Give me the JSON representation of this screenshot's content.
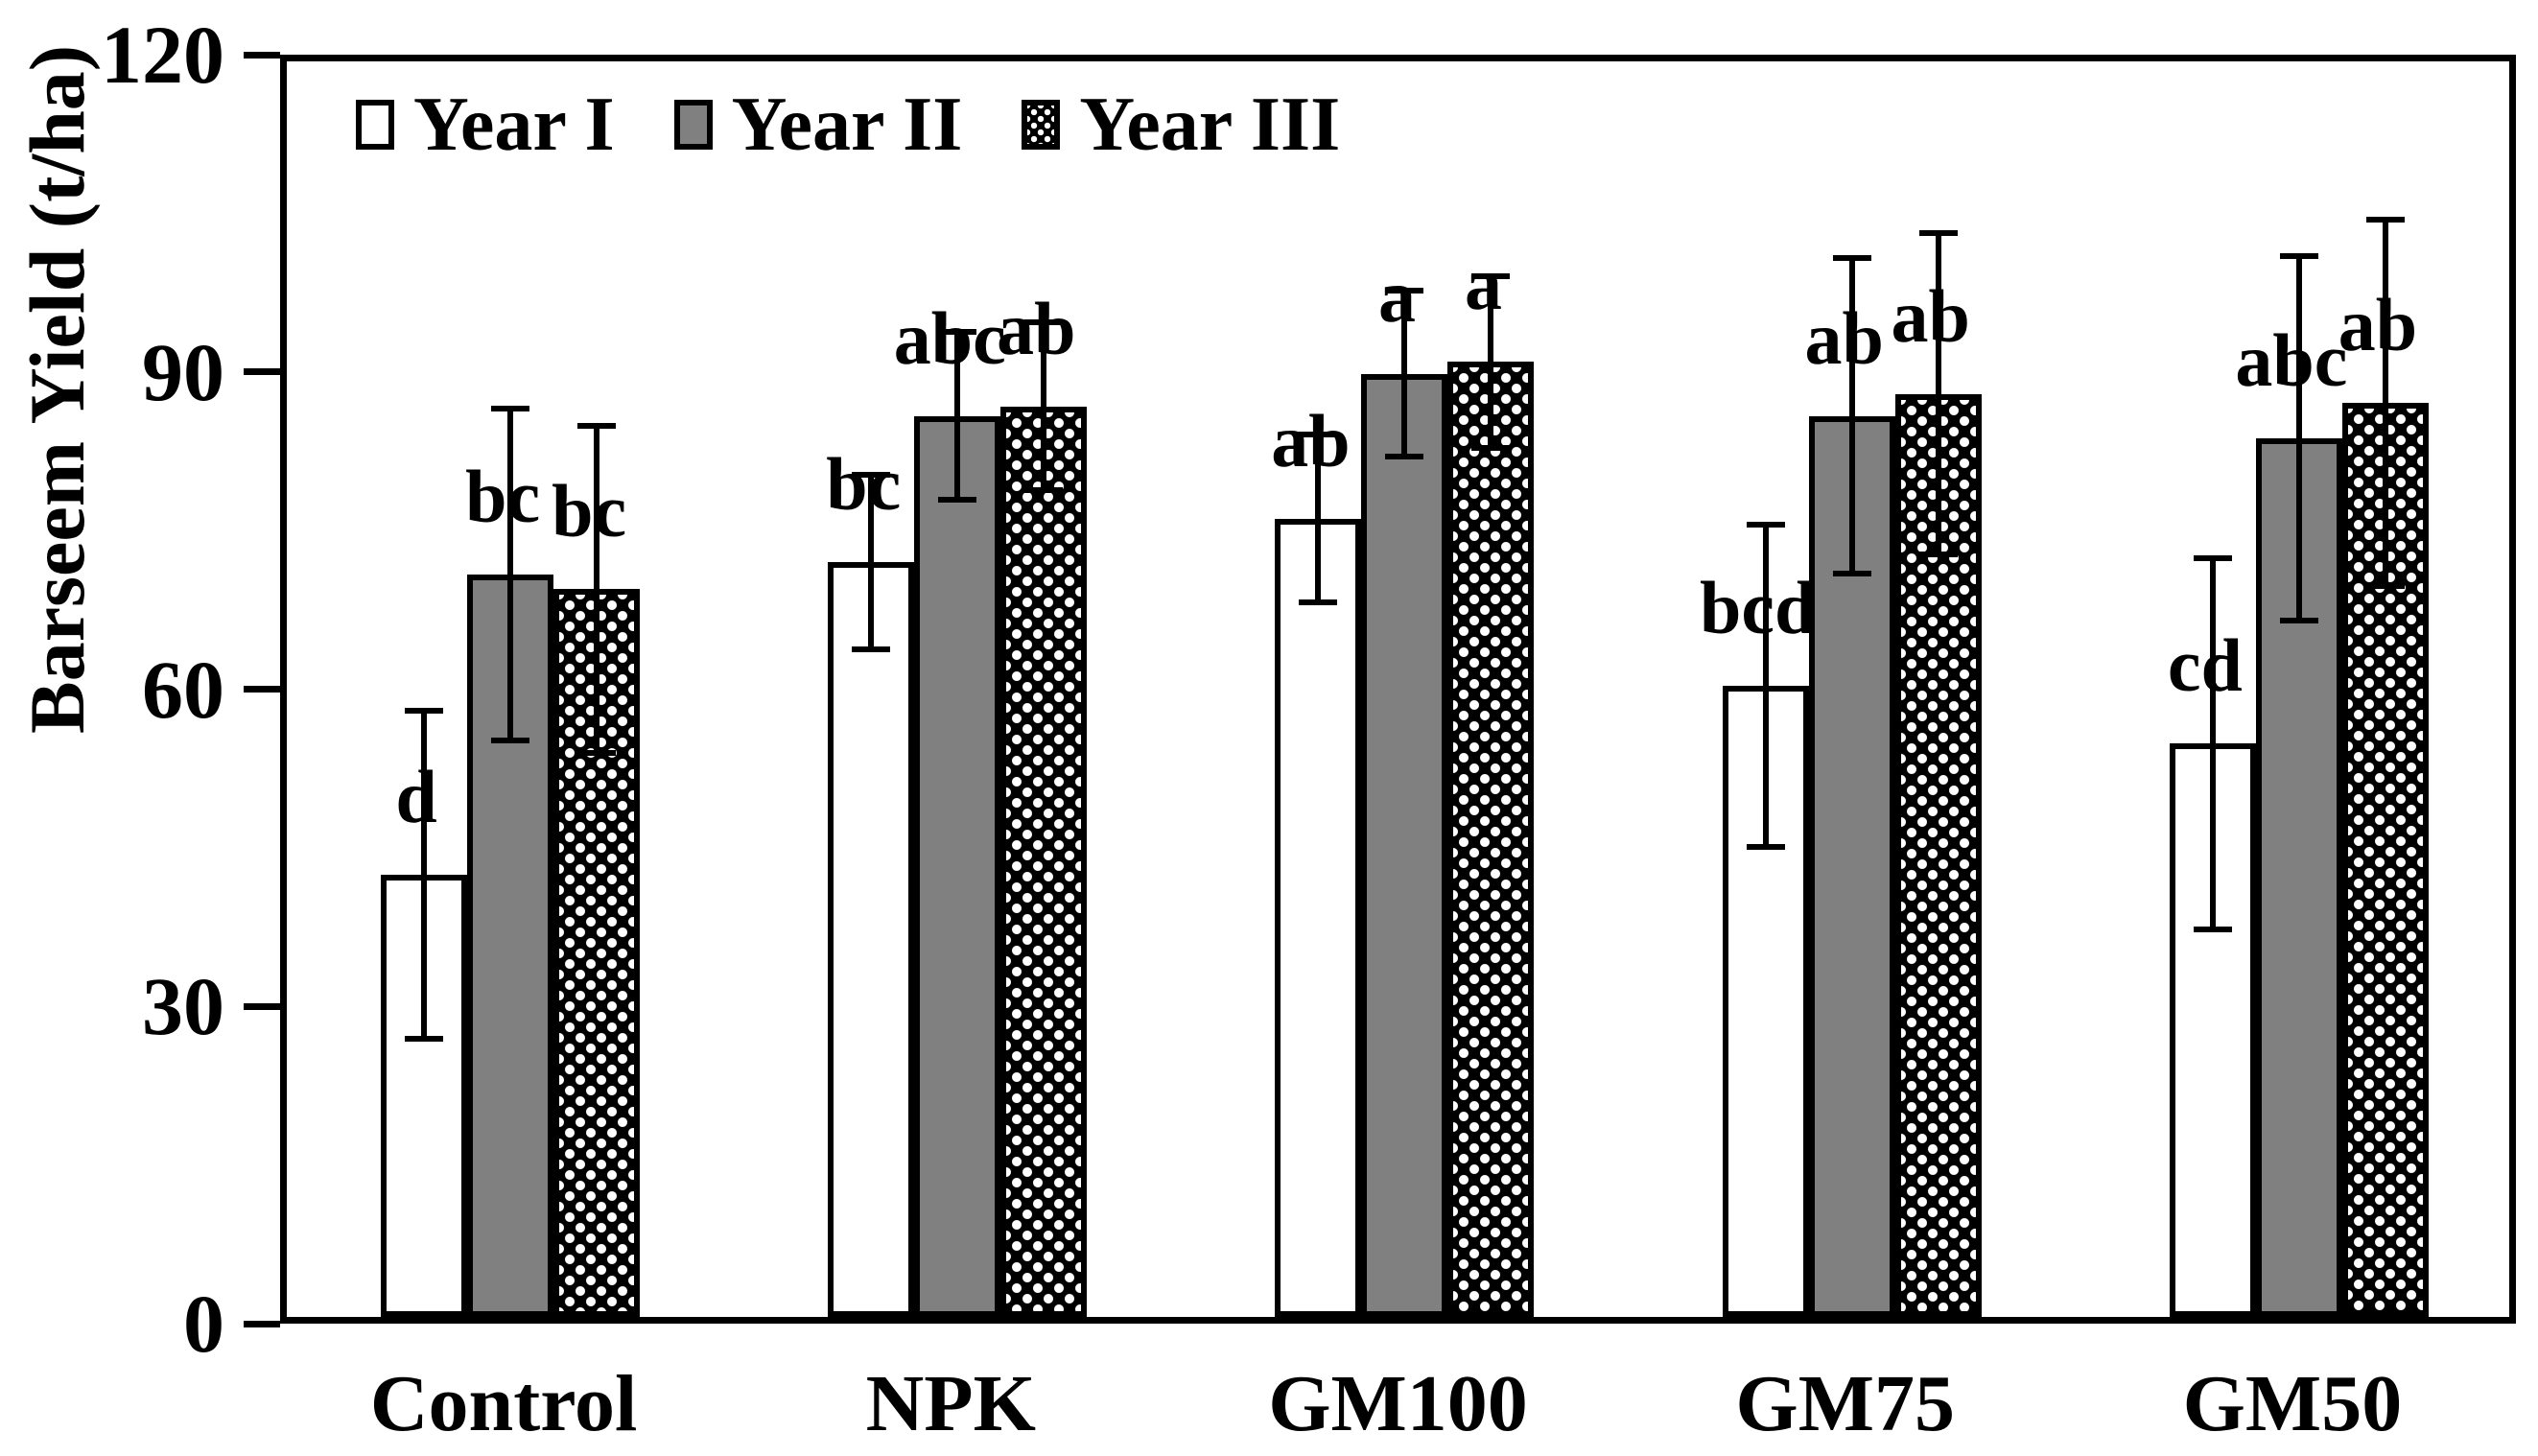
{
  "figure": {
    "background": "#ffffff"
  },
  "chart_data": {
    "type": "bar",
    "title": "",
    "xlabel": "",
    "ylabel": "Barseem Yield (t/ha)",
    "ylim": [
      0,
      120
    ],
    "yticks": [
      0,
      30,
      60,
      90,
      120
    ],
    "grid": false,
    "legend_position": "top-left-inside",
    "categories": [
      "Control",
      "NPK",
      "GM100",
      "GM75",
      "GM50"
    ],
    "series": [
      {
        "name": "Year I",
        "fill": "white",
        "values": [
          41.8,
          71.4,
          75.5,
          59.7,
          54.2
        ],
        "errors": [
          15.8,
          8.5,
          8.2,
          15.5,
          17.8
        ],
        "sig_labels": [
          "d",
          "bc",
          "ab",
          "bcd",
          "cd"
        ]
      },
      {
        "name": "Year II",
        "fill": "gray",
        "values": [
          70.2,
          85.2,
          89.2,
          85.2,
          83.1
        ],
        "errors": [
          16.0,
          8.2,
          8.1,
          15.2,
          17.5
        ],
        "sig_labels": [
          "bc",
          "abc",
          "a",
          "ab",
          "abc"
        ]
      },
      {
        "name": "Year III",
        "fill": "checkered",
        "values": [
          68.8,
          86.1,
          90.3,
          87.3,
          86.4
        ],
        "errors": [
          15.7,
          8.2,
          8.4,
          15.5,
          17.6
        ],
        "sig_labels": [
          "bc",
          "ab",
          "a",
          "ab",
          "ab"
        ]
      }
    ],
    "colors": {
      "bar_white": "#ffffff",
      "bar_gray": "#808080",
      "outline": "#000000",
      "error_bar": "#000000"
    }
  }
}
